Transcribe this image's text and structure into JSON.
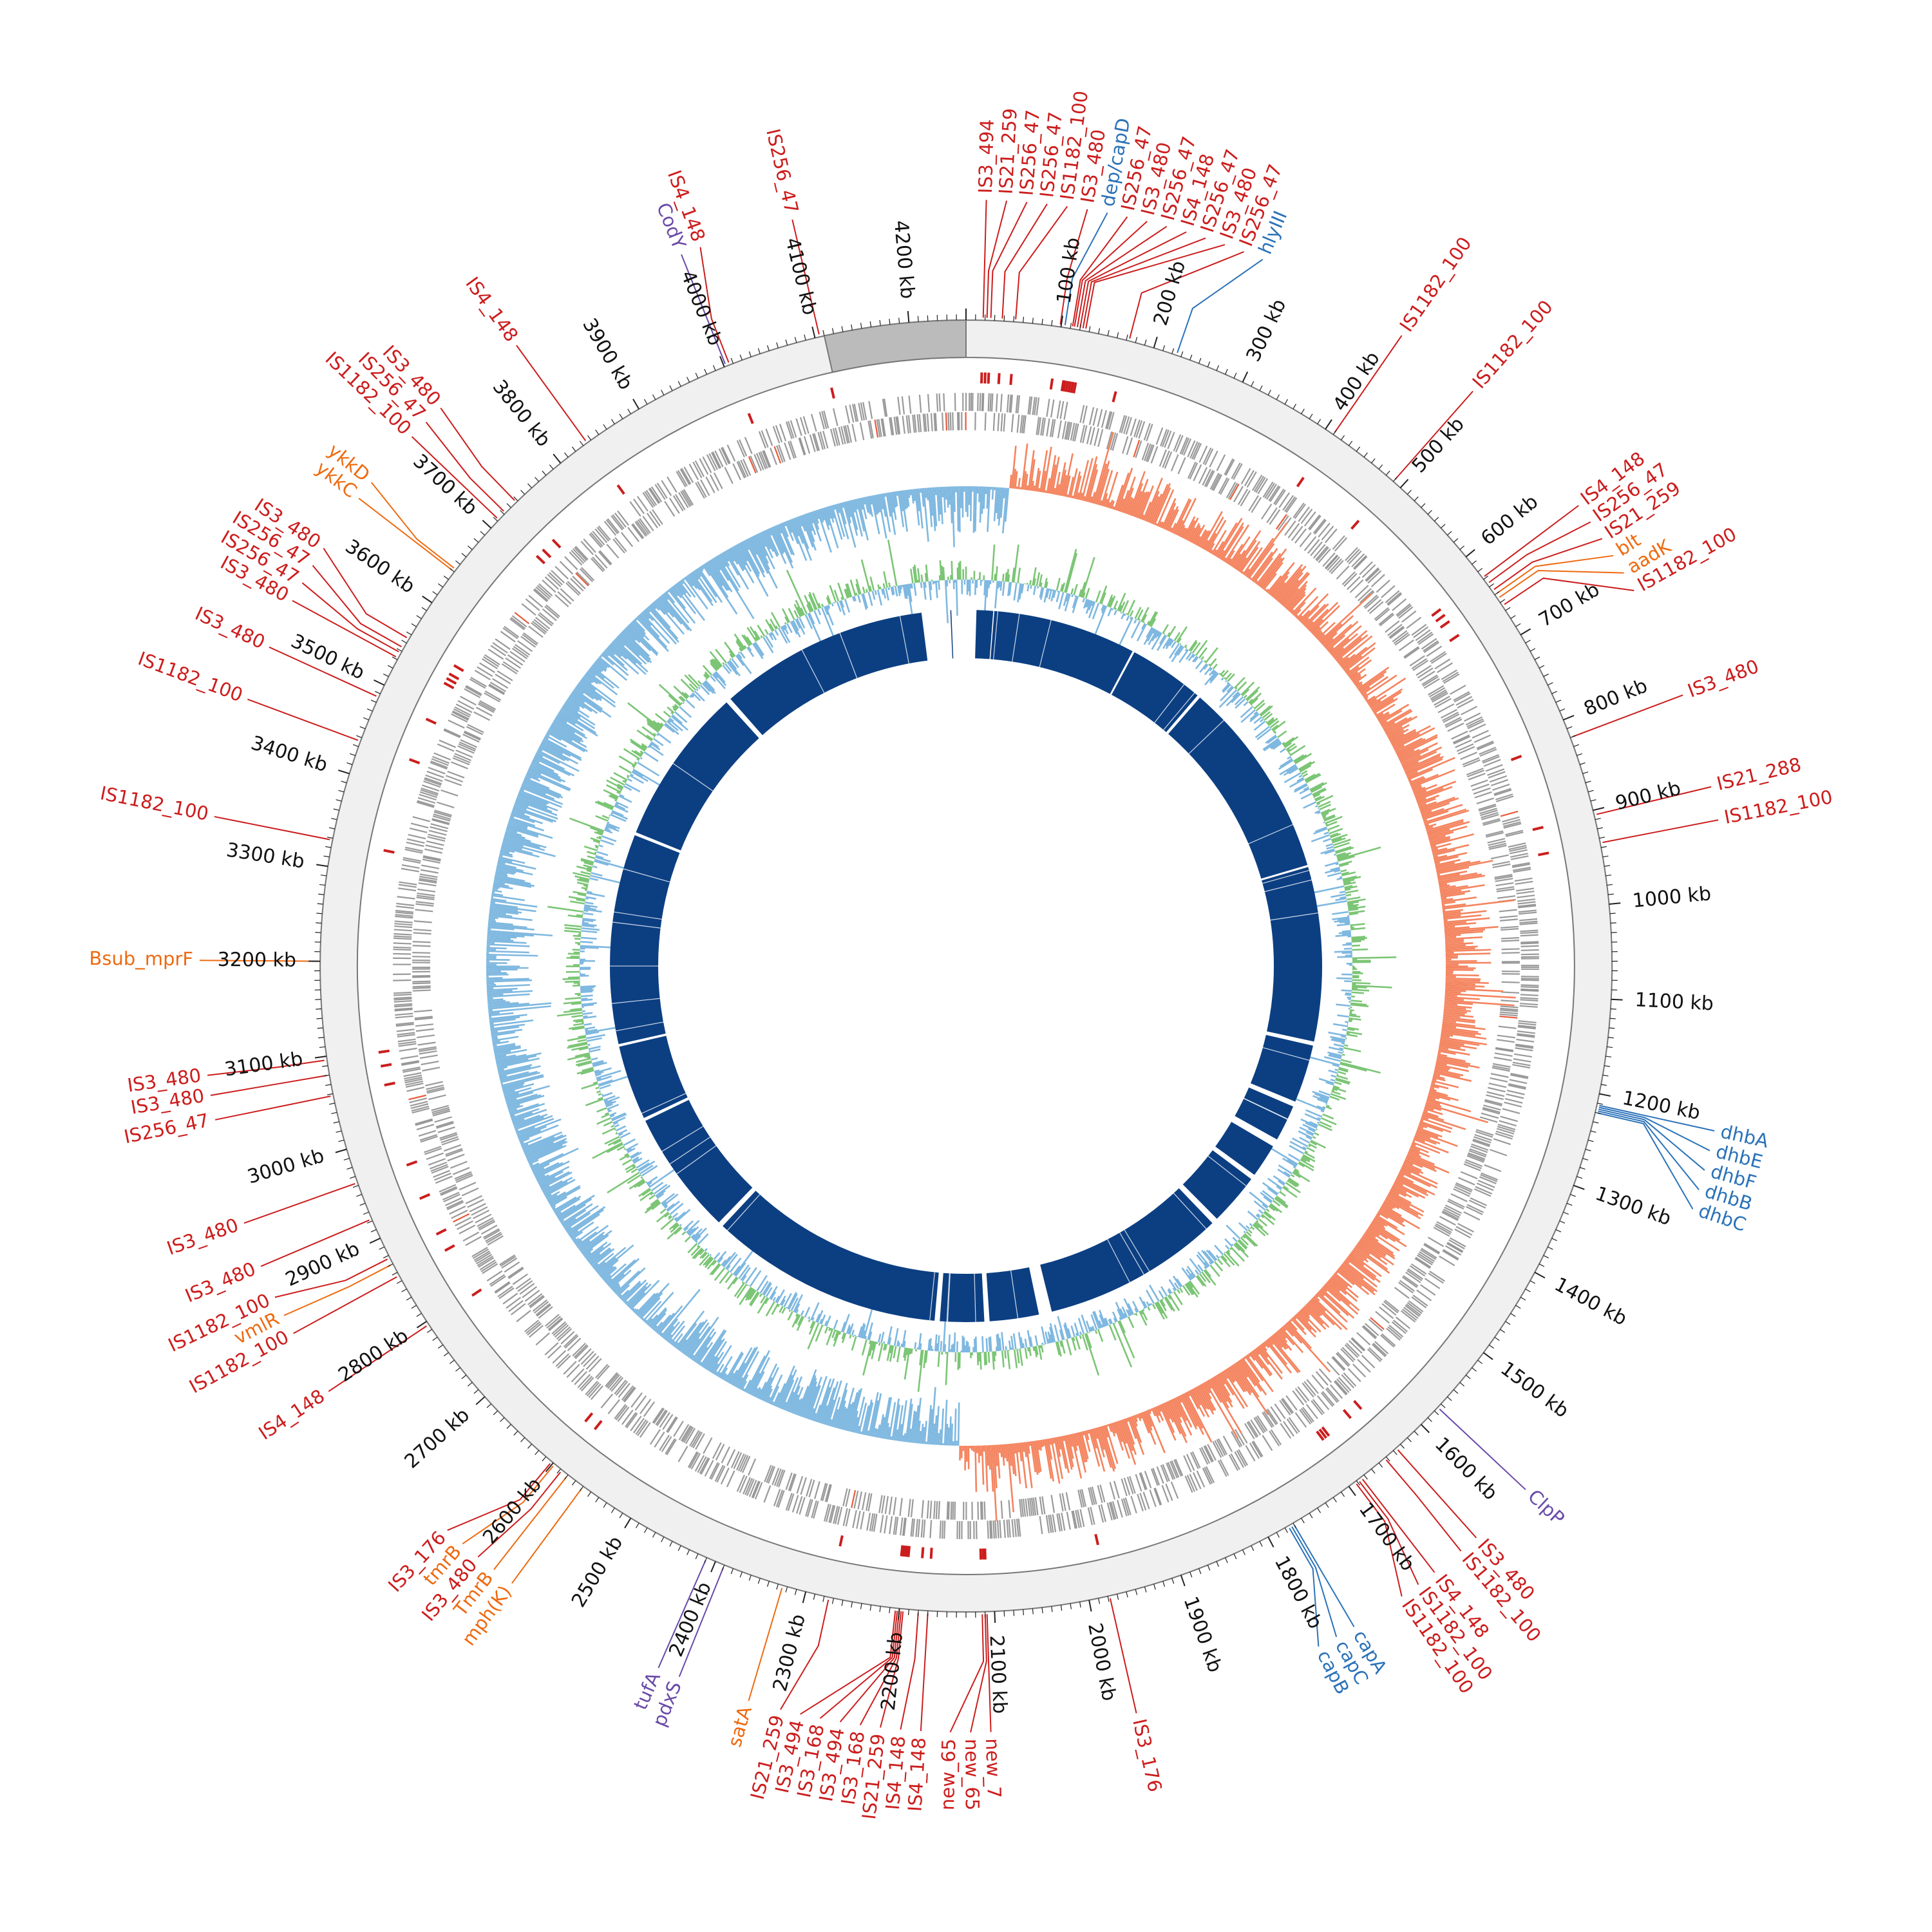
{
  "map": {
    "genome_length_kb": 4260,
    "colors": {
      "ruler": "#f0f0f0",
      "ruler_marker": "#bbbbbb",
      "ruler_stroke": "#777777",
      "cds": "#888888",
      "cds_highlight": "#e85a3a",
      "gc_skew_pos": "#f4845f",
      "gc_skew_neg": "#7fb8e0",
      "gc_content_pos": "#7cc576",
      "gc_content_neg": "#7fb8e0",
      "synteny": "#0c3f82",
      "is_element": "#cc1d1d",
      "resistance": "#ee6a10",
      "virulence": "#2a72b8",
      "regulator": "#6a4aa8",
      "tick_text": "#111111"
    },
    "kb_ticks": [
      {
        "kb": 100,
        "label": "100 kb"
      },
      {
        "kb": 200,
        "label": "200 kb"
      },
      {
        "kb": 300,
        "label": "300 kb"
      },
      {
        "kb": 400,
        "label": "400 kb"
      },
      {
        "kb": 500,
        "label": "500 kb"
      },
      {
        "kb": 600,
        "label": "600 kb"
      },
      {
        "kb": 700,
        "label": "700 kb"
      },
      {
        "kb": 800,
        "label": "800 kb"
      },
      {
        "kb": 900,
        "label": "900 kb"
      },
      {
        "kb": 1000,
        "label": "1000 kb"
      },
      {
        "kb": 1100,
        "label": "1100 kb"
      },
      {
        "kb": 1200,
        "label": "1200 kb"
      },
      {
        "kb": 1300,
        "label": "1300 kb"
      },
      {
        "kb": 1400,
        "label": "1400 kb"
      },
      {
        "kb": 1500,
        "label": "1500 kb"
      },
      {
        "kb": 1600,
        "label": "1600 kb"
      },
      {
        "kb": 1700,
        "label": "1700 kb"
      },
      {
        "kb": 1800,
        "label": "1800 kb"
      },
      {
        "kb": 1900,
        "label": "1900 kb"
      },
      {
        "kb": 2000,
        "label": "2000 kb"
      },
      {
        "kb": 2100,
        "label": "2100 kb"
      },
      {
        "kb": 2200,
        "label": "2200 kb"
      },
      {
        "kb": 2300,
        "label": "2300 kb"
      },
      {
        "kb": 2400,
        "label": "2400 kb"
      },
      {
        "kb": 2500,
        "label": "2500 kb"
      },
      {
        "kb": 2600,
        "label": "2600 kb"
      },
      {
        "kb": 2700,
        "label": "2700 kb"
      },
      {
        "kb": 2800,
        "label": "2800 kb"
      },
      {
        "kb": 2900,
        "label": "2900 kb"
      },
      {
        "kb": 3000,
        "label": "3000 kb"
      },
      {
        "kb": 3100,
        "label": "3100 kb"
      },
      {
        "kb": 3200,
        "label": "3200 kb"
      },
      {
        "kb": 3300,
        "label": "3300 kb"
      },
      {
        "kb": 3400,
        "label": "3400 kb"
      },
      {
        "kb": 3500,
        "label": "3500 kb"
      },
      {
        "kb": 3600,
        "label": "3600 kb"
      },
      {
        "kb": 3700,
        "label": "3700 kb"
      },
      {
        "kb": 3800,
        "label": "3800 kb"
      },
      {
        "kb": 3900,
        "label": "3900 kb"
      },
      {
        "kb": 4000,
        "label": "4000 kb"
      },
      {
        "kb": 4100,
        "label": "4100 kb"
      },
      {
        "kb": 4200,
        "label": "4200 kb"
      }
    ],
    "features": [
      {
        "label": "IS3_494",
        "kb": 18,
        "category": "is_element"
      },
      {
        "label": "IS21_259",
        "kb": 22,
        "category": "is_element"
      },
      {
        "label": "IS256_47",
        "kb": 26,
        "category": "is_element"
      },
      {
        "label": "IS256_47",
        "kb": 38,
        "category": "is_element"
      },
      {
        "label": "IS1182_100",
        "kb": 52,
        "category": "is_element"
      },
      {
        "label": "IS3_480",
        "kb": 99,
        "category": "is_element"
      },
      {
        "label": "dep/capD",
        "kb": 104,
        "category": "virulence"
      },
      {
        "label": "IS256_47",
        "kb": 112,
        "category": "is_element"
      },
      {
        "label": "IS3_480",
        "kb": 114,
        "category": "is_element"
      },
      {
        "label": "IS256_47",
        "kb": 117,
        "category": "is_element"
      },
      {
        "label": "IS4_148",
        "kb": 120,
        "category": "is_element"
      },
      {
        "label": "IS256_47",
        "kb": 123,
        "category": "is_element"
      },
      {
        "label": "IS3_480",
        "kb": 126,
        "category": "is_element"
      },
      {
        "label": "hlyIII",
        "kb": 225,
        "category": "virulence"
      },
      {
        "label": "IS256_47",
        "kb": 173,
        "category": "is_element"
      },
      {
        "label": "IS1182_100",
        "kb": 410,
        "category": "is_element"
      },
      {
        "label": "IS1182_100",
        "kb": 490,
        "category": "is_element"
      },
      {
        "label": "IS4_148",
        "kb": 628,
        "category": "is_element"
      },
      {
        "label": "IS256_47",
        "kb": 636,
        "category": "is_element"
      },
      {
        "label": "IS21_259",
        "kb": 645,
        "category": "is_element"
      },
      {
        "label": "blt",
        "kb": 650,
        "category": "resistance"
      },
      {
        "label": "aadK",
        "kb": 655,
        "category": "resistance"
      },
      {
        "label": "IS1182_100",
        "kb": 664,
        "category": "is_element"
      },
      {
        "label": "IS3_480",
        "kb": 820,
        "category": "is_element"
      },
      {
        "label": "IS21_288",
        "kb": 905,
        "category": "is_element"
      },
      {
        "label": "IS1182_100",
        "kb": 935,
        "category": "is_element"
      },
      {
        "label": "dhbA",
        "kb": 1212,
        "category": "virulence"
      },
      {
        "label": "dhbE",
        "kb": 1214,
        "category": "virulence"
      },
      {
        "label": "dhbF",
        "kb": 1216,
        "category": "virulence"
      },
      {
        "label": "dhbB",
        "kb": 1218,
        "category": "virulence"
      },
      {
        "label": "dhbC",
        "kb": 1220,
        "category": "virulence"
      },
      {
        "label": "ClpP",
        "kb": 1575,
        "category": "regulator"
      },
      {
        "label": "IS3_480",
        "kb": 1636,
        "category": "is_element"
      },
      {
        "label": "IS1182_100",
        "kb": 1652,
        "category": "is_element"
      },
      {
        "label": "IS4_148",
        "kb": 1684,
        "category": "is_element"
      },
      {
        "label": "IS1182_100",
        "kb": 1688,
        "category": "is_element"
      },
      {
        "label": "IS1182_100",
        "kb": 1692,
        "category": "is_element"
      },
      {
        "label": "capA",
        "kb": 1770,
        "category": "virulence"
      },
      {
        "label": "capC",
        "kb": 1773,
        "category": "virulence"
      },
      {
        "label": "capB",
        "kb": 1776,
        "category": "virulence"
      },
      {
        "label": "IS3_176",
        "kb": 1978,
        "category": "is_element"
      },
      {
        "label": "new_7",
        "kb": 2108,
        "category": "is_element"
      },
      {
        "label": "new_65",
        "kb": 2110,
        "category": "is_element"
      },
      {
        "label": "new_65",
        "kb": 2113,
        "category": "is_element"
      },
      {
        "label": "IS4_148",
        "kb": 2170,
        "category": "is_element"
      },
      {
        "label": "IS4_148",
        "kb": 2180,
        "category": "is_element"
      },
      {
        "label": "IS21_259",
        "kb": 2196,
        "category": "is_element"
      },
      {
        "label": "IS3_168",
        "kb": 2198,
        "category": "is_element"
      },
      {
        "label": "IS3_494",
        "kb": 2200,
        "category": "is_element"
      },
      {
        "label": "IS3_168",
        "kb": 2202,
        "category": "is_element"
      },
      {
        "label": "IS3_494",
        "kb": 2204,
        "category": "is_element"
      },
      {
        "label": "satA",
        "kb": 2325,
        "category": "resistance"
      },
      {
        "label": "IS21_259",
        "kb": 2275,
        "category": "is_element"
      },
      {
        "label": "pdxS",
        "kb": 2390,
        "category": "regulator"
      },
      {
        "label": "tufA",
        "kb": 2410,
        "category": "regulator"
      },
      {
        "label": "mph(K)",
        "kb": 2560,
        "category": "resistance"
      },
      {
        "label": "TmrB",
        "kb": 2580,
        "category": "resistance"
      },
      {
        "label": "IS3_480",
        "kb": 2588,
        "category": "is_element"
      },
      {
        "label": "tmrB",
        "kb": 2598,
        "category": "resistance"
      },
      {
        "label": "IS3_176",
        "kb": 2602,
        "category": "is_element"
      },
      {
        "label": "IS4_148",
        "kb": 2796,
        "category": "is_element"
      },
      {
        "label": "IS1182_100",
        "kb": 2856,
        "category": "is_element"
      },
      {
        "label": "vmlR",
        "kb": 2870,
        "category": "resistance"
      },
      {
        "label": "IS1182_100",
        "kb": 2877,
        "category": "is_element"
      },
      {
        "label": "IS3_480",
        "kb": 2922,
        "category": "is_element"
      },
      {
        "label": "IS3_480",
        "kb": 2963,
        "category": "is_element"
      },
      {
        "label": "IS256_47",
        "kb": 3058,
        "category": "is_element"
      },
      {
        "label": "IS3_480",
        "kb": 3080,
        "category": "is_element"
      },
      {
        "label": "IS3_480",
        "kb": 3096,
        "category": "is_element"
      },
      {
        "label": "Bsub_mprF",
        "kb": 3200,
        "category": "resistance"
      },
      {
        "label": "IS1182_100",
        "kb": 3328,
        "category": "is_element"
      },
      {
        "label": "IS1182_100",
        "kb": 3436,
        "category": "is_element"
      },
      {
        "label": "IS3_480",
        "kb": 3486,
        "category": "is_element"
      },
      {
        "label": "IS3_480",
        "kb": 3532,
        "category": "is_element"
      },
      {
        "label": "IS256_47",
        "kb": 3538,
        "category": "is_element"
      },
      {
        "label": "IS256_47",
        "kb": 3544,
        "category": "is_element"
      },
      {
        "label": "IS3_480",
        "kb": 3555,
        "category": "is_element"
      },
      {
        "label": "ykkC",
        "kb": 3640,
        "category": "resistance"
      },
      {
        "label": "ykkD",
        "kb": 3643,
        "category": "resistance"
      },
      {
        "label": "IS1182_100",
        "kb": 3712,
        "category": "is_element"
      },
      {
        "label": "IS256_47",
        "kb": 3722,
        "category": "is_element"
      },
      {
        "label": "IS3_480",
        "kb": 3738,
        "category": "is_element"
      },
      {
        "label": "IS4_148",
        "kb": 3835,
        "category": "is_element"
      },
      {
        "label": "CodY",
        "kb": 4002,
        "category": "regulator"
      },
      {
        "label": "IS4_148",
        "kb": 4006,
        "category": "is_element"
      },
      {
        "label": "IS256_47",
        "kb": 4105,
        "category": "is_element"
      }
    ]
  }
}
